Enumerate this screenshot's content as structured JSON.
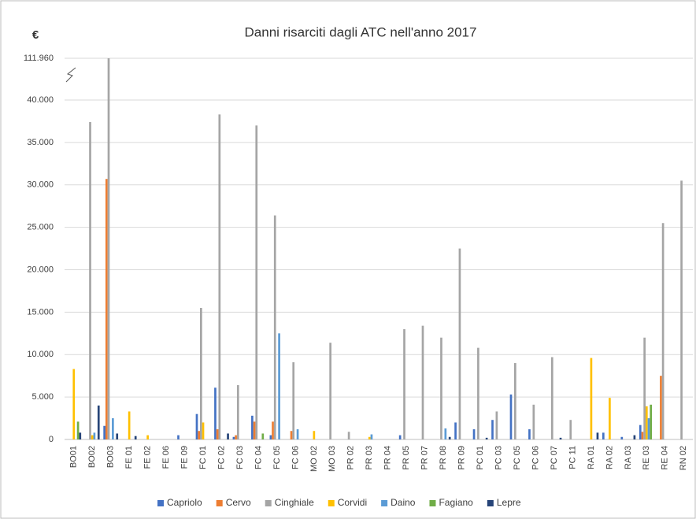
{
  "chart_data": {
    "type": "bar",
    "title": "Danni risarciti dagli ATC nell'anno 2017",
    "y_label": "€",
    "categories": [
      "BO01",
      "BO02",
      "BO03",
      "FE 01",
      "FE 02",
      "FE 06",
      "FE 09",
      "FC 01",
      "FC 02",
      "FC 03",
      "FC 04",
      "FC 05",
      "FC 06",
      "MO 02",
      "MO 03",
      "PR 02",
      "PR 03",
      "PR 04",
      "PR 05",
      "PR 07",
      "PR 08",
      "PR 09",
      "PC 01",
      "PC 03",
      "PC 05",
      "PC 06",
      "PC 07",
      "PC 11",
      "RA 01",
      "RA 02",
      "RA 03",
      "RE 03",
      "RE 04",
      "RN 02"
    ],
    "series": [
      {
        "name": "Capriolo",
        "color": "#4472c4",
        "values": [
          0,
          0,
          1600,
          0,
          0,
          0,
          500,
          3000,
          6100,
          300,
          2800,
          500,
          0,
          0,
          0,
          0,
          0,
          0,
          500,
          0,
          0,
          2000,
          1200,
          2300,
          5300,
          1200,
          0,
          0,
          0,
          800,
          300,
          1700,
          0,
          0
        ]
      },
      {
        "name": "Cervo",
        "color": "#ed7d31",
        "values": [
          0,
          0,
          30700,
          0,
          0,
          0,
          0,
          1000,
          1200,
          500,
          2100,
          2100,
          1000,
          0,
          0,
          0,
          0,
          0,
          0,
          0,
          0,
          0,
          0,
          0,
          0,
          0,
          0,
          0,
          0,
          0,
          0,
          900,
          7500,
          0
        ]
      },
      {
        "name": "Cinghiale",
        "color": "#a5a5a5",
        "values": [
          0,
          37400,
          111960,
          0,
          0,
          0,
          0,
          15500,
          38300,
          6400,
          37000,
          26400,
          9100,
          0,
          11400,
          900,
          0,
          0,
          13000,
          13400,
          12000,
          22500,
          10800,
          3300,
          9000,
          4100,
          9700,
          2300,
          0,
          0,
          0,
          12000,
          25500,
          30500
        ]
      },
      {
        "name": "Corvidi",
        "color": "#ffc000",
        "values": [
          8300,
          500,
          0,
          3300,
          500,
          0,
          0,
          2000,
          0,
          0,
          0,
          0,
          0,
          1000,
          0,
          0,
          300,
          0,
          0,
          0,
          0,
          0,
          0,
          0,
          0,
          0,
          0,
          0,
          9600,
          4900,
          0,
          3900,
          0,
          0
        ]
      },
      {
        "name": "Daino",
        "color": "#5b9bd5",
        "values": [
          0,
          800,
          2500,
          0,
          0,
          0,
          0,
          0,
          0,
          0,
          0,
          12500,
          1200,
          0,
          0,
          0,
          600,
          0,
          0,
          0,
          1300,
          0,
          0,
          0,
          0,
          0,
          0,
          0,
          0,
          0,
          0,
          2500,
          0,
          0
        ]
      },
      {
        "name": "Fagiano",
        "color": "#70ad47",
        "values": [
          2100,
          0,
          0,
          0,
          0,
          0,
          0,
          0,
          0,
          0,
          700,
          0,
          0,
          0,
          0,
          0,
          0,
          0,
          0,
          0,
          0,
          0,
          0,
          0,
          0,
          0,
          0,
          0,
          0,
          0,
          0,
          4100,
          0,
          0
        ]
      },
      {
        "name": "Lepre",
        "color": "#264478",
        "values": [
          800,
          4000,
          700,
          400,
          0,
          0,
          0,
          0,
          700,
          0,
          0,
          0,
          0,
          0,
          0,
          0,
          0,
          0,
          0,
          0,
          300,
          0,
          200,
          0,
          0,
          0,
          200,
          0,
          800,
          0,
          500,
          0,
          0,
          0
        ]
      }
    ],
    "ylim": [
      0,
      111960
    ],
    "yticks": [
      0,
      {
        "value": 5000,
        "label": "5.000"
      },
      {
        "value": 10000,
        "label": "10.000"
      },
      {
        "value": 15000,
        "label": "15.000"
      },
      {
        "value": 20000,
        "label": "20.000"
      },
      {
        "value": 25000,
        "label": "25.000"
      },
      {
        "value": 30000,
        "label": "30.000"
      },
      {
        "value": 35000,
        "label": "35.000"
      },
      {
        "value": 40000,
        "label": "40.000"
      },
      {
        "value": 111960,
        "label": "111.960"
      }
    ],
    "grid": true,
    "axis_break": true,
    "legend": "bottom"
  }
}
